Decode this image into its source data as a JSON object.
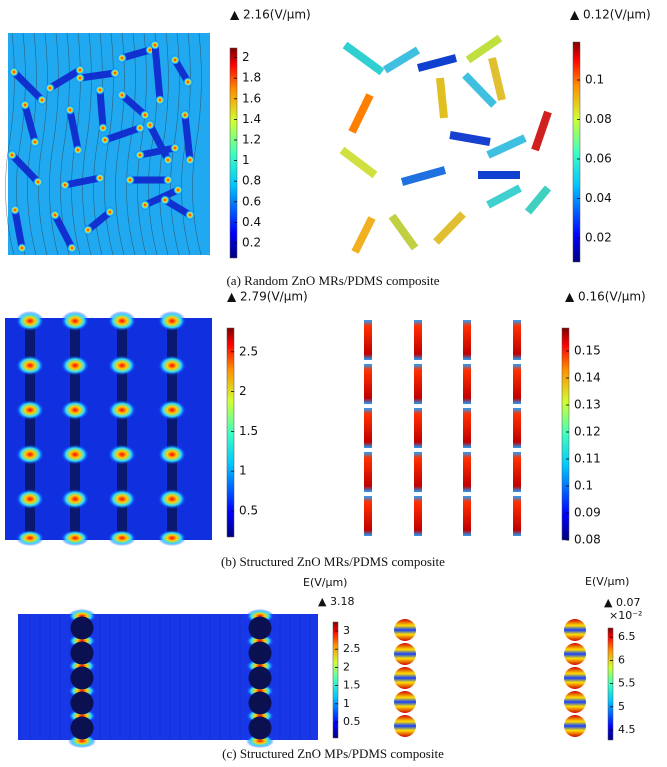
{
  "panels": [
    {
      "caption": "(a) Random ZnO MRs/PDMS composite",
      "maps": [
        {
          "max_label": "▲ 2.16(V/μm)",
          "ticks": [
            0.2,
            0.4,
            0.6,
            0.8,
            1,
            1.2,
            1.4,
            1.6,
            1.8,
            2
          ]
        },
        {
          "max_label": "▲ 0.12(V/μm)",
          "ticks": [
            0.02,
            0.04,
            0.06,
            0.08,
            0.1
          ]
        }
      ]
    },
    {
      "caption": "(b) Structured ZnO MRs/PDMS composite",
      "maps": [
        {
          "max_label": "▲ 2.79(V/μm)",
          "ticks": [
            0.5,
            1,
            1.5,
            2,
            2.5
          ]
        },
        {
          "max_label": "▲ 0.16(V/μm)",
          "ticks": [
            0.08,
            0.09,
            0.1,
            0.11,
            0.12,
            0.13,
            0.14,
            0.15
          ]
        }
      ]
    },
    {
      "caption": "(c) Structured ZnO MPs/PDMS composite",
      "maps": [
        {
          "unit_label": "E(V/μm)",
          "max_label": "▲ 3.18",
          "ticks": [
            0.5,
            1,
            1.5,
            2,
            2.5,
            3
          ]
        },
        {
          "unit_label": "E(V/μm)",
          "max_label": "▲ 0.07",
          "exponent_label": "×10⁻²",
          "ticks": [
            4.5,
            5,
            5.5,
            6,
            6.5
          ]
        }
      ]
    }
  ]
}
